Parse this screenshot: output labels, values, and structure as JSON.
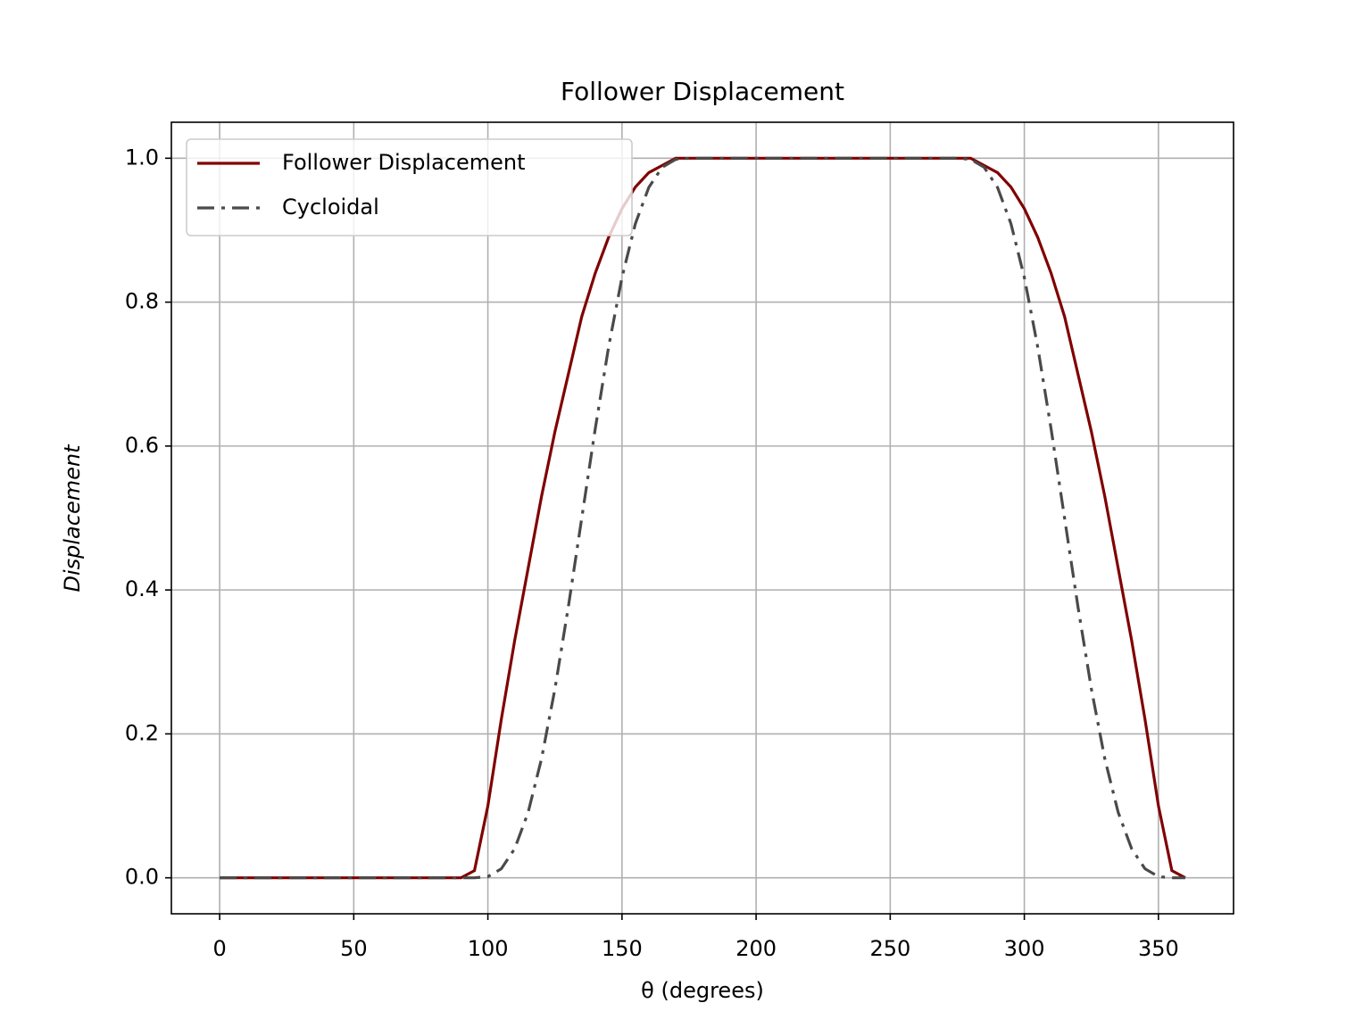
{
  "chart_data": {
    "type": "line",
    "title": "Follower Displacement",
    "xlabel": "θ (degrees)",
    "ylabel": "Displacement",
    "x": [
      0,
      5,
      10,
      15,
      20,
      25,
      30,
      35,
      40,
      45,
      50,
      55,
      60,
      65,
      70,
      75,
      80,
      85,
      90,
      95,
      100,
      105,
      110,
      115,
      120,
      125,
      130,
      135,
      140,
      145,
      150,
      155,
      160,
      165,
      170,
      175,
      180,
      185,
      190,
      195,
      200,
      205,
      210,
      215,
      220,
      225,
      230,
      235,
      240,
      245,
      250,
      255,
      260,
      265,
      270,
      275,
      280,
      285,
      290,
      295,
      300,
      305,
      310,
      315,
      320,
      325,
      330,
      335,
      340,
      345,
      350,
      355,
      360
    ],
    "series": [
      {
        "name": "Follower Displacement",
        "color": "#800000",
        "dash": "solid",
        "values": [
          0,
          0,
          0,
          0,
          0,
          0,
          0,
          0,
          0,
          0,
          0,
          0,
          0,
          0,
          0,
          0,
          0,
          0,
          0,
          0.01,
          0.1,
          0.22,
          0.33,
          0.43,
          0.53,
          0.62,
          0.7,
          0.78,
          0.84,
          0.89,
          0.93,
          0.96,
          0.98,
          0.99,
          1,
          1,
          1,
          1,
          1,
          1,
          1,
          1,
          1,
          1,
          1,
          1,
          1,
          1,
          1,
          1,
          1,
          1,
          1,
          1,
          1,
          1,
          1,
          0.99,
          0.98,
          0.96,
          0.93,
          0.89,
          0.84,
          0.78,
          0.7,
          0.62,
          0.53,
          0.43,
          0.33,
          0.22,
          0.1,
          0.01,
          0
        ]
      },
      {
        "name": "Cycloidal",
        "color": "#4a4a4a",
        "dash": "dashdot",
        "values": [
          0,
          0,
          0,
          0,
          0,
          0,
          0,
          0,
          0,
          0,
          0,
          0,
          0,
          0,
          0,
          0,
          0,
          0,
          0,
          0,
          0.0016,
          0.0125,
          0.0405,
          0.0908,
          0.1655,
          0.2625,
          0.3766,
          0.5,
          0.6234,
          0.7375,
          0.8345,
          0.9092,
          0.9595,
          0.9875,
          0.9984,
          1,
          1,
          1,
          1,
          1,
          1,
          1,
          1,
          1,
          1,
          1,
          1,
          1,
          1,
          1,
          1,
          1,
          1,
          1,
          1,
          1,
          0.9984,
          0.9875,
          0.9595,
          0.9092,
          0.8345,
          0.7375,
          0.6234,
          0.5,
          0.3766,
          0.2625,
          0.1655,
          0.0908,
          0.0405,
          0.0125,
          0.0016,
          0,
          0
        ]
      }
    ],
    "xlim": [
      -18,
      378
    ],
    "ylim": [
      -0.05,
      1.05
    ],
    "xticks": [
      0,
      50,
      100,
      150,
      200,
      250,
      300,
      350
    ],
    "yticks": [
      {
        "value": 0,
        "label": "0.0"
      },
      {
        "value": 0.2,
        "label": "0.2"
      },
      {
        "value": 0.4,
        "label": "0.4"
      },
      {
        "value": 0.6,
        "label": "0.6"
      },
      {
        "value": 0.8,
        "label": "0.8"
      },
      {
        "value": 1,
        "label": "1.0"
      }
    ],
    "grid": true,
    "legend": "upper left"
  }
}
